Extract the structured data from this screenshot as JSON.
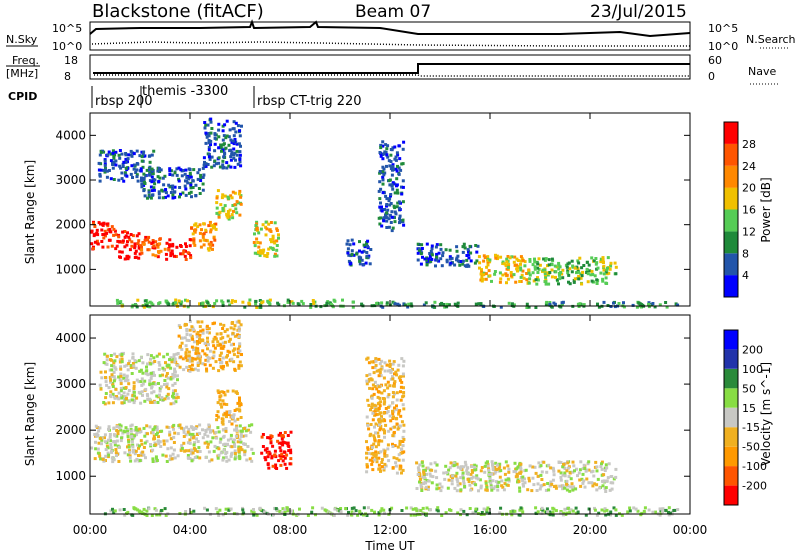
{
  "header": {
    "station": "Blackstone (fitACF)",
    "beam": "Beam 07",
    "date": "23/Jul/2015"
  },
  "sky_panel": {
    "left_label": "N.Sky",
    "right_label": "N.Search",
    "left_ticks": [
      "10^5",
      "10^0"
    ],
    "right_ticks": [
      "10^5",
      "10^0"
    ]
  },
  "freq_panel": {
    "left_label_1": "Freq.",
    "left_label_2": "[MHz]",
    "right_label": "Nave",
    "left_ticks": [
      "18",
      "8"
    ],
    "right_ticks": [
      "60",
      "0"
    ]
  },
  "cpid_panel": {
    "label": "CPID",
    "segments": [
      "rbsp 200",
      "themis -3300",
      "rbsp CT-trig 220"
    ]
  },
  "colors": {
    "power": [
      "#0000ff",
      "#2255aa",
      "#1f8a3a",
      "#55cc55",
      "#f0c000",
      "#ff8800",
      "#ff5500",
      "#ff0000"
    ],
    "velocity": [
      "#ff0000",
      "#ff5500",
      "#ff9900",
      "#f0b020",
      "#c8c8c4",
      "#88dd44",
      "#2a8a3a",
      "#2233aa",
      "#0000ff"
    ]
  },
  "chart_data": [
    {
      "type": "heatmap",
      "panel": "power",
      "ylabel": "Slant Range [km]",
      "ylim": [
        180,
        4500
      ],
      "yticks": [
        "1000",
        "2000",
        "3000",
        "4000"
      ],
      "xlim": [
        0,
        24
      ],
      "xticks": [
        "00:00",
        "04:00",
        "08:00",
        "12:00",
        "16:00",
        "20:00",
        "00:00"
      ],
      "colorbar_label": "Power [dB]",
      "colorbar_ticks": [
        "4",
        "8",
        "12",
        "16",
        "20",
        "24",
        "28"
      ],
      "bands": [
        {
          "x": [
            0.0,
            1.0
          ],
          "y": [
            1450,
            2100
          ],
          "level": 7
        },
        {
          "x": [
            1.0,
            2.0
          ],
          "y": [
            1250,
            1900
          ],
          "level": 7
        },
        {
          "x": [
            2.0,
            3.0
          ],
          "y": [
            1300,
            1750
          ],
          "level": 6
        },
        {
          "x": [
            3.0,
            4.0
          ],
          "y": [
            1250,
            1700
          ],
          "level": 7
        },
        {
          "x": [
            4.0,
            5.0
          ],
          "y": [
            1450,
            2100
          ],
          "level": 5
        },
        {
          "x": [
            5.0,
            6.0
          ],
          "y": [
            2150,
            2800
          ],
          "level": 4
        },
        {
          "x": [
            6.5,
            7.5
          ],
          "y": [
            1300,
            2100
          ],
          "level": 4
        },
        {
          "x": [
            0.3,
            2.5
          ],
          "y": [
            3000,
            3700
          ],
          "level": 1
        },
        {
          "x": [
            2.0,
            4.5
          ],
          "y": [
            2600,
            3300
          ],
          "level": 1
        },
        {
          "x": [
            4.5,
            6.0
          ],
          "y": [
            3300,
            4400
          ],
          "level": 1
        },
        {
          "x": [
            10.2,
            11.2
          ],
          "y": [
            1100,
            1700
          ],
          "level": 1
        },
        {
          "x": [
            11.5,
            12.5
          ],
          "y": [
            1900,
            3900
          ],
          "level": 1
        },
        {
          "x": [
            13.0,
            15.5
          ],
          "y": [
            1100,
            1600
          ],
          "level": 1
        },
        {
          "x": [
            15.5,
            17.5
          ],
          "y": [
            700,
            1350
          ],
          "level": 4
        },
        {
          "x": [
            17.5,
            21.0
          ],
          "y": [
            700,
            1300
          ],
          "level": 3
        },
        {
          "x": [
            1.0,
            11.0
          ],
          "y": [
            180,
            350
          ],
          "level": 3
        },
        {
          "x": [
            11.0,
            23.5
          ],
          "y": [
            180,
            300
          ],
          "level": 2
        }
      ]
    },
    {
      "type": "heatmap",
      "panel": "velocity",
      "xlabel": "Time UT",
      "ylabel": "Slant Range [km]",
      "ylim": [
        180,
        4500
      ],
      "yticks": [
        "1000",
        "2000",
        "3000",
        "4000"
      ],
      "xlim": [
        0,
        24
      ],
      "xticks": [
        "00:00",
        "04:00",
        "08:00",
        "12:00",
        "16:00",
        "20:00",
        "00:00"
      ],
      "colorbar_label": "Velocity [m s^-1]",
      "colorbar_ticks": [
        "-200",
        "-100",
        "-50",
        "-15",
        "15",
        "50",
        "100",
        "200"
      ],
      "bands": [
        {
          "x": [
            0.0,
            6.5
          ],
          "y": [
            1350,
            2150
          ],
          "level": 4
        },
        {
          "x": [
            5.0,
            6.0
          ],
          "y": [
            2150,
            2900
          ],
          "level": 3
        },
        {
          "x": [
            0.3,
            3.5
          ],
          "y": [
            2600,
            3700
          ],
          "level": 4
        },
        {
          "x": [
            3.5,
            6.0
          ],
          "y": [
            3300,
            4400
          ],
          "level": 3
        },
        {
          "x": [
            6.8,
            8.0
          ],
          "y": [
            1200,
            2000
          ],
          "level": 0
        },
        {
          "x": [
            11.0,
            12.5
          ],
          "y": [
            1100,
            3600
          ],
          "level": 3
        },
        {
          "x": [
            13.0,
            21.0
          ],
          "y": [
            700,
            1350
          ],
          "level": 4
        },
        {
          "x": [
            0.5,
            23.5
          ],
          "y": [
            180,
            350
          ],
          "level": 5
        }
      ]
    }
  ]
}
